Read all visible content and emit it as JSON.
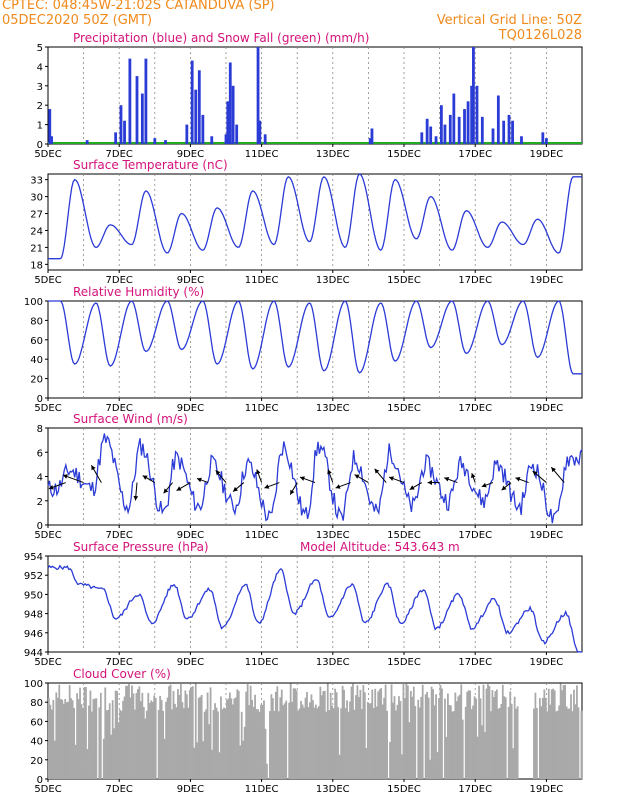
{
  "header": {
    "line1_left": "CPTEC:   048:45W-21:02S   CATANDUVA (SP)",
    "line2_left": "05DEC2020 50Z (GMT)",
    "line1_right": "Vertical Grid Line: 50Z",
    "line2_right": "TQ0126L028"
  },
  "colors": {
    "header": "#f08a1c",
    "title": "#d4127a",
    "series": "#2b3bd6",
    "snow": "#22aa22",
    "cloud": "#a9a9a9",
    "grid": "#888888"
  },
  "x_axis": {
    "labels": [
      "5DEC",
      "7DEC",
      "9DEC",
      "11DEC",
      "13DEC",
      "15DEC",
      "17DEC",
      "19DEC"
    ],
    "days_span": [
      5,
      20
    ]
  },
  "chart_data": [
    {
      "id": "precip",
      "type": "bar",
      "title": "Precipitation (blue) and Snow Fall (green) (mm/h)",
      "ylim": [
        0,
        5
      ],
      "yticks": [
        "0",
        "1",
        "2",
        "3",
        "4",
        "5"
      ],
      "bars": [
        [
          5.05,
          1.8
        ],
        [
          5.1,
          0.4
        ],
        [
          6.1,
          0.2
        ],
        [
          6.9,
          0.6
        ],
        [
          7.05,
          2.0
        ],
        [
          7.15,
          1.2
        ],
        [
          7.3,
          4.4
        ],
        [
          7.5,
          3.5
        ],
        [
          7.65,
          2.6
        ],
        [
          7.75,
          4.4
        ],
        [
          8.0,
          0.3
        ],
        [
          8.3,
          0.2
        ],
        [
          8.9,
          1.0
        ],
        [
          9.05,
          4.3
        ],
        [
          9.15,
          2.8
        ],
        [
          9.25,
          3.8
        ],
        [
          9.35,
          1.5
        ],
        [
          9.6,
          0.4
        ],
        [
          10.0,
          0.5
        ],
        [
          10.05,
          2.2
        ],
        [
          10.12,
          4.2
        ],
        [
          10.2,
          3.0
        ],
        [
          10.3,
          1.0
        ],
        [
          10.9,
          5.0
        ],
        [
          10.95,
          1.2
        ],
        [
          11.1,
          0.5
        ],
        [
          14.05,
          0.3
        ],
        [
          14.1,
          0.8
        ],
        [
          15.5,
          0.6
        ],
        [
          15.65,
          1.3
        ],
        [
          15.75,
          0.9
        ],
        [
          15.9,
          0.4
        ],
        [
          16.05,
          2.0
        ],
        [
          16.15,
          1.0
        ],
        [
          16.3,
          1.5
        ],
        [
          16.4,
          2.6
        ],
        [
          16.55,
          1.4
        ],
        [
          16.7,
          1.8
        ],
        [
          16.8,
          2.2
        ],
        [
          16.9,
          3.0
        ],
        [
          16.95,
          5.0
        ],
        [
          17.05,
          3.0
        ],
        [
          17.2,
          1.4
        ],
        [
          17.5,
          0.8
        ],
        [
          17.65,
          2.5
        ],
        [
          17.8,
          1.2
        ],
        [
          17.95,
          1.5
        ],
        [
          18.05,
          1.2
        ],
        [
          18.3,
          0.4
        ],
        [
          18.9,
          0.6
        ],
        [
          19.0,
          0.3
        ]
      ]
    },
    {
      "id": "temp",
      "type": "line",
      "title": "Surface Temperature (nC)",
      "ylim": [
        17,
        34
      ],
      "yticks": [
        "18",
        "21",
        "24",
        "27",
        "30",
        "33"
      ],
      "series": [
        {
          "peaks": [
            33,
            25,
            31,
            27,
            28,
            31,
            33.5,
            33.5,
            34,
            33,
            30,
            27.5,
            25.5,
            26,
            33.5
          ],
          "troughs": [
            19,
            21,
            21.5,
            20,
            20.5,
            21,
            21.5,
            22,
            21,
            20.5,
            22.5,
            20.5,
            21,
            21.5,
            20
          ]
        }
      ]
    },
    {
      "id": "humidity",
      "type": "line",
      "title": "Relative Humidity (%)",
      "ylim": [
        0,
        100
      ],
      "yticks": [
        "0",
        "20",
        "40",
        "60",
        "80",
        "100"
      ],
      "series": [
        {
          "peaks": [
            100,
            98,
            100,
            100,
            100,
            100,
            100,
            98,
            100,
            98,
            100,
            100,
            100,
            100,
            100
          ],
          "troughs": [
            35,
            33,
            48,
            50,
            35,
            30,
            32,
            28,
            26,
            38,
            52,
            46,
            55,
            42,
            25
          ]
        }
      ]
    },
    {
      "id": "wind",
      "type": "line",
      "title": "Surface Wind (m/s)",
      "ylim": [
        0,
        8
      ],
      "yticks": [
        "0",
        "2",
        "4",
        "6",
        "8"
      ],
      "series": [
        {
          "peaks": [
            4.5,
            7,
            6.5,
            5.5,
            5,
            5,
            6.5,
            6.5,
            5.5,
            6,
            5,
            5,
            5,
            5,
            5.5
          ],
          "troughs": [
            3,
            3,
            1.5,
            1,
            1.5,
            1.5,
            0.5,
            0.8,
            0.5,
            1.0,
            1.5,
            2,
            2,
            1.5,
            0.3
          ]
        }
      ],
      "arrows": [
        {
          "day": 5.5,
          "dir": 160,
          "len": 18
        },
        {
          "day": 6.0,
          "dir": 200,
          "len": 22
        },
        {
          "day": 6.5,
          "dir": 240,
          "len": 20
        },
        {
          "day": 7.5,
          "dir": 95,
          "len": 18
        },
        {
          "day": 8.0,
          "dir": 210,
          "len": 14
        },
        {
          "day": 8.5,
          "dir": 130,
          "len": 14
        },
        {
          "day": 9.0,
          "dir": 150,
          "len": 16
        },
        {
          "day": 9.5,
          "dir": 200,
          "len": 12
        },
        {
          "day": 10.0,
          "dir": 230,
          "len": 16
        },
        {
          "day": 10.5,
          "dir": 140,
          "len": 14
        },
        {
          "day": 11.0,
          "dir": 250,
          "len": 14
        },
        {
          "day": 11.5,
          "dir": 160,
          "len": 16
        },
        {
          "day": 12.0,
          "dir": 120,
          "len": 14
        },
        {
          "day": 12.5,
          "dir": 200,
          "len": 16
        },
        {
          "day": 13.0,
          "dir": 250,
          "len": 14
        },
        {
          "day": 13.5,
          "dir": 160,
          "len": 16
        },
        {
          "day": 14.0,
          "dir": 210,
          "len": 16
        },
        {
          "day": 14.5,
          "dir": 230,
          "len": 18
        },
        {
          "day": 15.0,
          "dir": 200,
          "len": 16
        },
        {
          "day": 15.5,
          "dir": 150,
          "len": 14
        },
        {
          "day": 16.0,
          "dir": 180,
          "len": 12
        },
        {
          "day": 16.5,
          "dir": 200,
          "len": 14
        },
        {
          "day": 17.0,
          "dir": 250,
          "len": 10
        },
        {
          "day": 17.5,
          "dir": 160,
          "len": 12
        },
        {
          "day": 18.0,
          "dir": 140,
          "len": 12
        },
        {
          "day": 18.5,
          "dir": 200,
          "len": 14
        },
        {
          "day": 19.0,
          "dir": 220,
          "len": 18
        },
        {
          "day": 19.5,
          "dir": 230,
          "len": 20
        }
      ]
    },
    {
      "id": "pressure",
      "type": "line",
      "title": "Surface Pressure (hPa)",
      "subtitle": "Model Altitude: 543.643 m",
      "ylim": [
        944,
        954
      ],
      "yticks": [
        "944",
        "946",
        "948",
        "950",
        "952",
        "954"
      ],
      "series": [
        {
          "peaks": [
            952.8,
            950.5,
            950,
            951,
            950.5,
            951,
            952.5,
            951.5,
            951,
            951,
            950.5,
            950,
            949.5,
            948.5,
            948
          ],
          "troughs": [
            951,
            947.5,
            947,
            947.5,
            946.5,
            947,
            948,
            947.5,
            947,
            947,
            946.5,
            946.5,
            946,
            945,
            944
          ]
        }
      ]
    },
    {
      "id": "cloud",
      "type": "bar",
      "title": "Cloud Cover (%)",
      "ylim": [
        0,
        100
      ],
      "yticks": [
        "0",
        "20",
        "40",
        "60",
        "80",
        "100"
      ],
      "bars_seed": 7
    }
  ]
}
